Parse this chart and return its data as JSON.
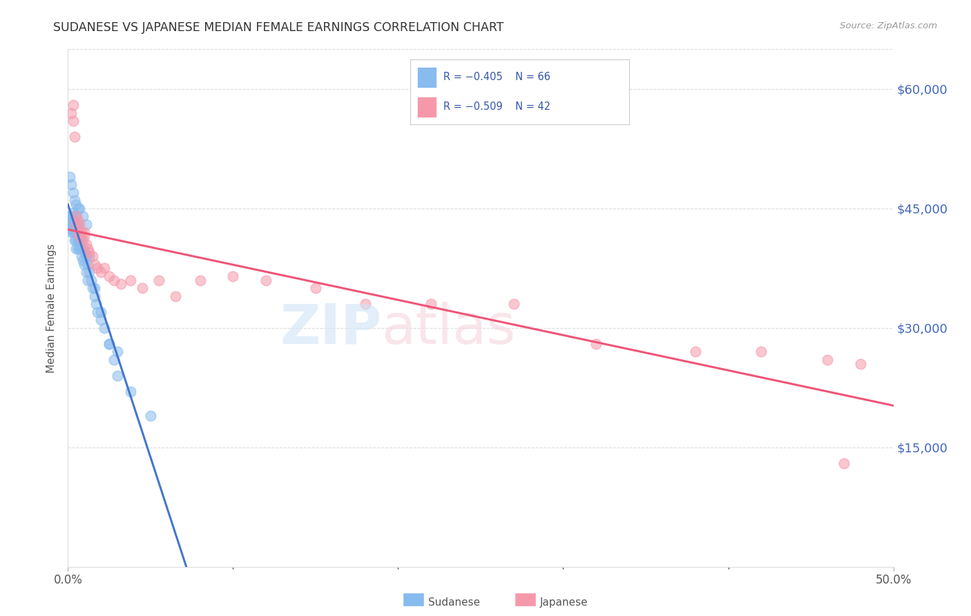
{
  "title": "SUDANESE VS JAPANESE MEDIAN FEMALE EARNINGS CORRELATION CHART",
  "source": "Source: ZipAtlas.com",
  "ylabel": "Median Female Earnings",
  "ytick_labels": [
    "$15,000",
    "$30,000",
    "$45,000",
    "$60,000"
  ],
  "ytick_values": [
    15000,
    30000,
    45000,
    60000
  ],
  "xlim": [
    0.0,
    0.5
  ],
  "ylim": [
    0,
    65000
  ],
  "sudanese_color": "#88BBEE",
  "japanese_color": "#F599AA",
  "sudanese_line_color": "#4477CC",
  "japanese_line_color": "#EE5577",
  "dashed_line_color": "#AACCEE",
  "sudanese_x": [
    0.001,
    0.001,
    0.001,
    0.001,
    0.002,
    0.002,
    0.002,
    0.002,
    0.003,
    0.003,
    0.003,
    0.003,
    0.004,
    0.004,
    0.004,
    0.004,
    0.005,
    0.005,
    0.005,
    0.005,
    0.005,
    0.006,
    0.006,
    0.006,
    0.006,
    0.007,
    0.007,
    0.007,
    0.008,
    0.008,
    0.008,
    0.009,
    0.009,
    0.01,
    0.01,
    0.011,
    0.011,
    0.012,
    0.012,
    0.013,
    0.014,
    0.015,
    0.016,
    0.017,
    0.018,
    0.02,
    0.022,
    0.025,
    0.028,
    0.03,
    0.001,
    0.002,
    0.003,
    0.004,
    0.005,
    0.006,
    0.007,
    0.009,
    0.011,
    0.013,
    0.016,
    0.02,
    0.025,
    0.03,
    0.038,
    0.05
  ],
  "sudanese_y": [
    44000,
    43500,
    43000,
    42500,
    44000,
    43500,
    43000,
    42000,
    44500,
    43500,
    43000,
    42000,
    43500,
    43000,
    42000,
    41000,
    44000,
    43000,
    42000,
    41000,
    40000,
    43000,
    42000,
    41000,
    40000,
    42000,
    41000,
    40000,
    41000,
    40000,
    39000,
    40000,
    38500,
    39500,
    38000,
    39000,
    37000,
    38000,
    36000,
    37000,
    36000,
    35000,
    34000,
    33000,
    32000,
    31000,
    30000,
    28000,
    26000,
    27000,
    49000,
    48000,
    47000,
    46000,
    45500,
    45000,
    45000,
    44000,
    43000,
    39000,
    35000,
    32000,
    28000,
    24000,
    22000,
    19000
  ],
  "japanese_x": [
    0.002,
    0.003,
    0.003,
    0.004,
    0.005,
    0.005,
    0.006,
    0.006,
    0.007,
    0.007,
    0.008,
    0.009,
    0.01,
    0.011,
    0.012,
    0.013,
    0.015,
    0.016,
    0.018,
    0.02,
    0.022,
    0.025,
    0.028,
    0.032,
    0.038,
    0.045,
    0.055,
    0.065,
    0.08,
    0.1,
    0.12,
    0.15,
    0.18,
    0.22,
    0.27,
    0.32,
    0.38,
    0.42,
    0.46,
    0.48,
    0.01,
    0.47
  ],
  "japanese_y": [
    57000,
    58000,
    56000,
    54000,
    44000,
    43000,
    43500,
    42000,
    43000,
    41500,
    42000,
    41000,
    41500,
    40500,
    40000,
    39500,
    39000,
    38000,
    37500,
    37000,
    37500,
    36500,
    36000,
    35500,
    36000,
    35000,
    36000,
    34000,
    36000,
    36500,
    36000,
    35000,
    33000,
    33000,
    33000,
    28000,
    27000,
    27000,
    26000,
    25500,
    42000,
    13000
  ]
}
